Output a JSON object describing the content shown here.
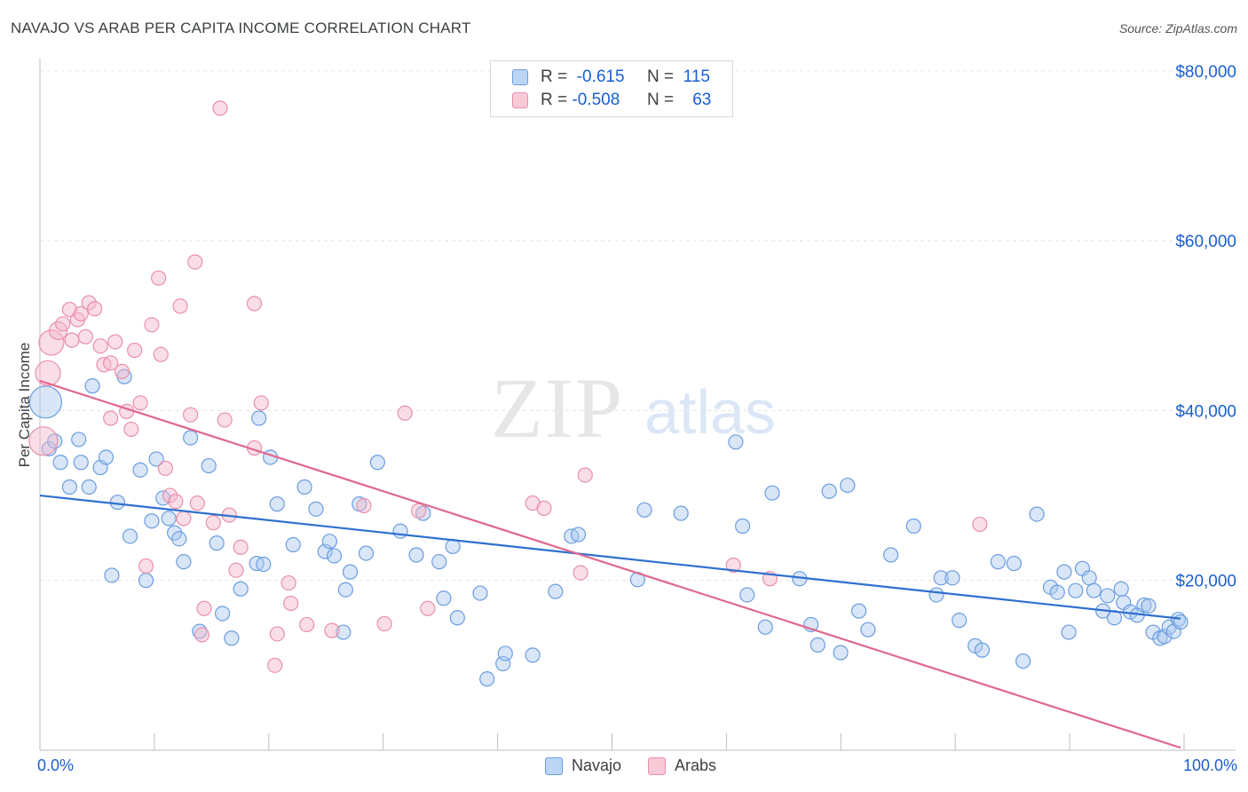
{
  "title": "NAVAJO VS ARAB PER CAPITA INCOME CORRELATION CHART",
  "source": "Source: ZipAtlas.com",
  "watermark": {
    "zip": "ZIP",
    "atlas": "atlas"
  },
  "legend_top": {
    "rows": [
      {
        "r_label": "R =",
        "r_value": "-0.615",
        "n_label": "N =",
        "n_value": "115",
        "color": "#a9c8f0"
      },
      {
        "r_label": "R =",
        "r_value": "-0.508",
        "n_label": "N =",
        "n_value": "63",
        "color": "#f5b6c9"
      }
    ]
  },
  "bottom_legend": [
    {
      "label": "Navajo",
      "color": "#a9c8f0"
    },
    {
      "label": "Arabs",
      "color": "#f5b6c9"
    }
  ],
  "chart_data": {
    "type": "scatter",
    "title": "NAVAJO VS ARAB PER CAPITA INCOME CORRELATION CHART",
    "xlabel": "",
    "ylabel": "Per Capita Income",
    "xlim": [
      0,
      100
    ],
    "ylim": [
      0,
      82000
    ],
    "x_tick_labels": [
      "0.0%",
      "100.0%"
    ],
    "y_ticks": [
      20000,
      40000,
      60000,
      80000
    ],
    "y_tick_labels": [
      "$20,000",
      "$40,000",
      "$60,000",
      "$80,000"
    ],
    "grid": true,
    "series": [
      {
        "name": "Navajo",
        "color": "#6b9de0",
        "fill": "#a9c8f0",
        "trend": {
          "x": [
            0,
            100
          ],
          "y": [
            30000,
            15500
          ],
          "color": "#2f6fd0"
        },
        "points": [
          [
            0.5,
            41000,
            18
          ],
          [
            0.8,
            35500,
            8
          ],
          [
            1.3,
            36400,
            8
          ],
          [
            1.8,
            33900,
            8
          ],
          [
            2.6,
            31000,
            8
          ],
          [
            3.4,
            36600,
            8
          ],
          [
            3.6,
            33900,
            8
          ],
          [
            4.3,
            31000,
            8
          ],
          [
            4.6,
            42900,
            8
          ],
          [
            5.3,
            33300,
            8
          ],
          [
            5.8,
            34500,
            8
          ],
          [
            6.3,
            20600,
            8
          ],
          [
            6.8,
            29200,
            8
          ],
          [
            7.4,
            44000,
            8
          ],
          [
            7.9,
            25200,
            8
          ],
          [
            8.8,
            33000,
            8
          ],
          [
            9.3,
            20000,
            8
          ],
          [
            9.8,
            27000,
            8
          ],
          [
            10.2,
            34300,
            8
          ],
          [
            10.8,
            29700,
            8
          ],
          [
            11.3,
            27300,
            8
          ],
          [
            11.8,
            25600,
            8
          ],
          [
            12.2,
            24900,
            8
          ],
          [
            12.6,
            22200,
            8
          ],
          [
            13.2,
            36800,
            8
          ],
          [
            14.0,
            14000,
            8
          ],
          [
            14.8,
            33500,
            8
          ],
          [
            15.5,
            24400,
            8
          ],
          [
            16.0,
            16100,
            8
          ],
          [
            16.8,
            13200,
            8
          ],
          [
            17.6,
            19000,
            8
          ],
          [
            19.0,
            22000,
            8
          ],
          [
            19.2,
            39100,
            8
          ],
          [
            19.6,
            21900,
            8
          ],
          [
            20.2,
            34500,
            8
          ],
          [
            20.8,
            29000,
            8
          ],
          [
            22.2,
            24200,
            8
          ],
          [
            23.2,
            31000,
            8
          ],
          [
            24.2,
            28400,
            8
          ],
          [
            25.0,
            23400,
            8
          ],
          [
            25.4,
            24600,
            8
          ],
          [
            25.8,
            22900,
            8
          ],
          [
            26.8,
            18900,
            8
          ],
          [
            27.2,
            21000,
            8
          ],
          [
            28.0,
            29000,
            8
          ],
          [
            28.6,
            23200,
            8
          ],
          [
            29.6,
            33900,
            8
          ],
          [
            31.6,
            25800,
            8
          ],
          [
            33.0,
            23000,
            8
          ],
          [
            33.6,
            27900,
            8
          ],
          [
            35.0,
            22200,
            8
          ],
          [
            35.4,
            17900,
            8
          ],
          [
            36.2,
            24000,
            8
          ],
          [
            36.6,
            15600,
            8
          ],
          [
            38.6,
            18500,
            8
          ],
          [
            39.2,
            8400,
            8
          ],
          [
            40.6,
            10200,
            8
          ],
          [
            40.8,
            11400,
            8
          ],
          [
            43.2,
            11200,
            8
          ],
          [
            45.2,
            18700,
            8
          ],
          [
            46.6,
            25200,
            8
          ],
          [
            47.2,
            25400,
            8
          ],
          [
            52.4,
            20100,
            8
          ],
          [
            53.0,
            28300,
            8
          ],
          [
            56.2,
            27900,
            8
          ],
          [
            61.0,
            36300,
            8
          ],
          [
            61.6,
            26400,
            8
          ],
          [
            62.0,
            18300,
            8
          ],
          [
            63.6,
            14500,
            8
          ],
          [
            64.2,
            30300,
            8
          ],
          [
            66.6,
            20200,
            8
          ],
          [
            67.6,
            14800,
            8
          ],
          [
            68.2,
            12400,
            8
          ],
          [
            69.2,
            30500,
            8
          ],
          [
            70.2,
            11500,
            8
          ],
          [
            70.8,
            31200,
            8
          ],
          [
            71.8,
            16400,
            8
          ],
          [
            74.6,
            23000,
            8
          ],
          [
            76.6,
            26400,
            8
          ],
          [
            78.6,
            18300,
            8
          ],
          [
            79.0,
            20300,
            8
          ],
          [
            80.0,
            20300,
            8
          ],
          [
            80.6,
            15300,
            8
          ],
          [
            82.0,
            12300,
            8
          ],
          [
            82.6,
            11800,
            8
          ],
          [
            84.0,
            22200,
            8
          ],
          [
            85.4,
            22000,
            8
          ],
          [
            86.2,
            10500,
            8
          ],
          [
            87.4,
            27800,
            8
          ],
          [
            88.6,
            19200,
            8
          ],
          [
            89.2,
            18600,
            8
          ],
          [
            89.8,
            21000,
            8
          ],
          [
            90.2,
            13900,
            8
          ],
          [
            90.8,
            18800,
            8
          ],
          [
            91.4,
            21400,
            8
          ],
          [
            92.0,
            20300,
            8
          ],
          [
            92.4,
            18800,
            8
          ],
          [
            93.2,
            16400,
            8
          ],
          [
            93.6,
            18200,
            8
          ],
          [
            94.2,
            15600,
            8
          ],
          [
            94.8,
            19000,
            8
          ],
          [
            95.0,
            17400,
            8
          ],
          [
            95.6,
            16300,
            8
          ],
          [
            96.2,
            15900,
            8
          ],
          [
            96.8,
            17100,
            8
          ],
          [
            97.2,
            17000,
            8
          ],
          [
            97.6,
            13900,
            8
          ],
          [
            98.2,
            13200,
            8
          ],
          [
            98.6,
            13400,
            8
          ],
          [
            99.0,
            14500,
            8
          ],
          [
            99.4,
            14000,
            8
          ],
          [
            99.8,
            15400,
            8
          ],
          [
            100.0,
            15100,
            8
          ],
          [
            26.6,
            13900,
            8
          ],
          [
            72.6,
            14200,
            8
          ]
        ]
      },
      {
        "name": "Arabs",
        "color": "#e98fac",
        "fill": "#f5b6c9",
        "trend": {
          "x": [
            0,
            100
          ],
          "y": [
            43500,
            300
          ],
          "color": "#e0688f"
        },
        "points": [
          [
            0.3,
            36400,
            16
          ],
          [
            0.7,
            44400,
            14
          ],
          [
            1.0,
            48000,
            14
          ],
          [
            1.6,
            49400,
            10
          ],
          [
            2.0,
            50200,
            8
          ],
          [
            2.6,
            51900,
            8
          ],
          [
            2.8,
            48300,
            8
          ],
          [
            3.3,
            50700,
            8
          ],
          [
            3.6,
            51400,
            8
          ],
          [
            4.0,
            48700,
            8
          ],
          [
            4.3,
            52700,
            8
          ],
          [
            4.8,
            52000,
            8
          ],
          [
            5.3,
            47600,
            8
          ],
          [
            5.6,
            45400,
            8
          ],
          [
            6.2,
            45600,
            8
          ],
          [
            6.6,
            48100,
            8
          ],
          [
            6.2,
            39100,
            8
          ],
          [
            7.2,
            44600,
            8
          ],
          [
            7.6,
            39900,
            8
          ],
          [
            8.0,
            37800,
            8
          ],
          [
            8.3,
            47100,
            8
          ],
          [
            8.8,
            40900,
            8
          ],
          [
            9.3,
            21700,
            8
          ],
          [
            9.8,
            50100,
            8
          ],
          [
            10.4,
            55600,
            8
          ],
          [
            10.6,
            46600,
            8
          ],
          [
            11.0,
            33200,
            8
          ],
          [
            11.4,
            30000,
            8
          ],
          [
            11.9,
            29300,
            8
          ],
          [
            12.3,
            52300,
            8
          ],
          [
            12.6,
            27300,
            8
          ],
          [
            13.2,
            39500,
            8
          ],
          [
            13.6,
            57500,
            8
          ],
          [
            13.8,
            29100,
            8
          ],
          [
            14.2,
            13600,
            8
          ],
          [
            14.4,
            16700,
            8
          ],
          [
            15.2,
            26800,
            8
          ],
          [
            15.8,
            75600,
            8
          ],
          [
            16.2,
            38900,
            8
          ],
          [
            16.6,
            27700,
            8
          ],
          [
            17.2,
            21200,
            8
          ],
          [
            17.6,
            23900,
            8
          ],
          [
            18.8,
            52600,
            8
          ],
          [
            18.8,
            35600,
            8
          ],
          [
            19.4,
            40900,
            8
          ],
          [
            20.6,
            10000,
            8
          ],
          [
            20.8,
            13700,
            8
          ],
          [
            21.8,
            19700,
            8
          ],
          [
            22.0,
            17300,
            8
          ],
          [
            23.4,
            14800,
            8
          ],
          [
            25.6,
            14100,
            8
          ],
          [
            28.4,
            28800,
            8
          ],
          [
            30.2,
            14900,
            8
          ],
          [
            32.0,
            39700,
            8
          ],
          [
            33.2,
            28200,
            8
          ],
          [
            34.0,
            16700,
            8
          ],
          [
            43.2,
            29100,
            8
          ],
          [
            44.2,
            28500,
            8
          ],
          [
            47.4,
            20900,
            8
          ],
          [
            47.8,
            32400,
            8
          ],
          [
            60.8,
            21800,
            8
          ],
          [
            64.0,
            20200,
            8
          ],
          [
            82.4,
            26600,
            8
          ]
        ]
      }
    ]
  }
}
